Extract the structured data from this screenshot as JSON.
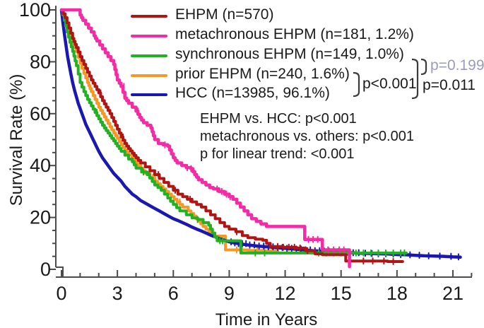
{
  "figure": {
    "background": "#ffffff",
    "text_color": "#1a1a1a",
    "axis_color": "#4b4b4b"
  },
  "chart_data": {
    "type": "line",
    "variant": "kaplan-meier-survival-steps",
    "title": "",
    "xlabel": "Time in Years",
    "ylabel": "Survival Rate (%)",
    "xlim": [
      0,
      22
    ],
    "ylim": [
      0,
      100
    ],
    "xticks": [
      0,
      3,
      6,
      9,
      12,
      15,
      18,
      21
    ],
    "xtick_minor_interval": 1,
    "yticks": [
      0,
      20,
      40,
      60,
      80,
      100
    ],
    "ytick_minor_interval": 5,
    "grid": false,
    "legend_position": "top-left-inside",
    "annotations": [
      "EHPM vs. HCC: p<0.001",
      "metachronous vs. others: p<0.001",
      "p for linear trend: <0.001"
    ],
    "comparisons": [
      {
        "label": "p<0.001",
        "color": "#1a1a1a"
      },
      {
        "label": "p=0.011",
        "color": "#1a1a1a"
      },
      {
        "label": "p=0.199",
        "color": "#9b9bbd"
      }
    ],
    "series": [
      {
        "name": "EHPM",
        "label": "EHPM (n=570)",
        "color": "#b01513",
        "line_width": 4,
        "step": true,
        "points": [
          [
            0,
            100
          ],
          [
            0.2,
            97
          ],
          [
            0.4,
            93
          ],
          [
            0.6,
            89
          ],
          [
            0.8,
            85.5
          ],
          [
            1,
            82
          ],
          [
            1.2,
            79
          ],
          [
            1.4,
            76
          ],
          [
            1.6,
            73
          ],
          [
            1.8,
            70.5
          ],
          [
            2,
            68
          ],
          [
            2.2,
            65
          ],
          [
            2.4,
            62.5
          ],
          [
            2.6,
            60
          ],
          [
            2.8,
            57
          ],
          [
            3,
            54
          ],
          [
            3.2,
            51
          ],
          [
            3.4,
            48.5
          ],
          [
            3.6,
            46.5
          ],
          [
            3.8,
            44.8
          ],
          [
            4,
            43
          ],
          [
            4.25,
            41
          ],
          [
            4.5,
            39.5
          ],
          [
            4.75,
            38
          ],
          [
            5,
            36.5
          ],
          [
            5.25,
            35
          ],
          [
            5.5,
            33.5
          ],
          [
            5.75,
            32
          ],
          [
            6,
            30.5
          ],
          [
            6.25,
            29
          ],
          [
            6.5,
            28
          ],
          [
            6.75,
            27
          ],
          [
            7,
            26
          ],
          [
            7.25,
            25
          ],
          [
            7.5,
            24
          ],
          [
            7.75,
            22.5
          ],
          [
            8,
            21
          ],
          [
            8.25,
            19.5
          ],
          [
            8.5,
            18
          ],
          [
            8.75,
            16.5
          ],
          [
            9,
            15.5
          ],
          [
            9.35,
            14.5
          ],
          [
            9.7,
            13
          ],
          [
            10,
            12.2
          ],
          [
            10.4,
            11.6
          ],
          [
            10.8,
            11.2
          ],
          [
            11.2,
            8.8
          ],
          [
            11.9,
            8.5
          ],
          [
            12.6,
            8.2
          ],
          [
            13.1,
            7.2
          ],
          [
            13.6,
            6
          ],
          [
            14,
            5.6
          ],
          [
            15.2,
            5.6
          ],
          [
            15.25,
            3.2
          ],
          [
            16.5,
            3.2
          ],
          [
            17.5,
            3
          ],
          [
            18.3,
            3
          ]
        ],
        "censor_ticks": [
          2.1,
          3.3,
          5.2,
          6.1,
          6.9,
          9.4,
          11.6,
          11.9,
          12.2,
          12.5,
          12.8,
          13.2,
          16.2,
          16.7,
          17.3,
          17.8
        ]
      },
      {
        "name": "metachronous EHPM",
        "label": "metachronous EHPM (n=181, 1.2%)",
        "color": "#f42ba5",
        "line_width": 4.5,
        "step": true,
        "points": [
          [
            0,
            100
          ],
          [
            0.9,
            100
          ],
          [
            1,
            98
          ],
          [
            1.15,
            96
          ],
          [
            1.3,
            94.5
          ],
          [
            1.45,
            93
          ],
          [
            1.6,
            91.5
          ],
          [
            1.75,
            90
          ],
          [
            1.9,
            88
          ],
          [
            2.05,
            86.5
          ],
          [
            2.2,
            85
          ],
          [
            2.35,
            83.5
          ],
          [
            2.5,
            82
          ],
          [
            2.65,
            80.5
          ],
          [
            2.8,
            79
          ],
          [
            3,
            73
          ],
          [
            3.2,
            70.5
          ],
          [
            3.4,
            66
          ],
          [
            3.6,
            64
          ],
          [
            3.8,
            62.5
          ],
          [
            4,
            61
          ],
          [
            4.2,
            58.5
          ],
          [
            4.4,
            56.5
          ],
          [
            4.6,
            55.5
          ],
          [
            4.8,
            54.5
          ],
          [
            5,
            50
          ],
          [
            5.2,
            48.5
          ],
          [
            5.45,
            48
          ],
          [
            5.7,
            47.5
          ],
          [
            6,
            43
          ],
          [
            6.2,
            41
          ],
          [
            6.45,
            40
          ],
          [
            6.7,
            39.2
          ],
          [
            6.95,
            38.8
          ],
          [
            7.15,
            36.5
          ],
          [
            7.35,
            34.5
          ],
          [
            7.55,
            33.5
          ],
          [
            7.75,
            32.5
          ],
          [
            7.95,
            31.5
          ],
          [
            8.15,
            31
          ],
          [
            8.45,
            30
          ],
          [
            8.75,
            29
          ],
          [
            9,
            28
          ],
          [
            9.2,
            27
          ],
          [
            9.4,
            25.5
          ],
          [
            9.6,
            24
          ],
          [
            9.8,
            22.5
          ],
          [
            10,
            21
          ],
          [
            10.2,
            19.5
          ],
          [
            10.45,
            18.5
          ],
          [
            10.7,
            17.5
          ],
          [
            11,
            16.5
          ],
          [
            13,
            16.5
          ],
          [
            13.05,
            11.5
          ],
          [
            13.95,
            11.5
          ],
          [
            14,
            7.5
          ],
          [
            15.4,
            7.5
          ],
          [
            15.45,
            1
          ]
        ],
        "censor_ticks": [
          3.35,
          4.1,
          5.55,
          6.75,
          6.95,
          8.35,
          8.6,
          8.85,
          9.05,
          13.25,
          13.5,
          13.75,
          14.3,
          14.6,
          14.9,
          15.15
        ]
      },
      {
        "name": "synchronous EHPM",
        "label": "synchronous EHPM (n=149, 1.0%)",
        "color": "#23b123",
        "line_width": 4,
        "step": true,
        "points": [
          [
            0,
            100
          ],
          [
            0.15,
            96
          ],
          [
            0.3,
            91.5
          ],
          [
            0.45,
            87.5
          ],
          [
            0.6,
            84
          ],
          [
            0.8,
            78.5
          ],
          [
            1,
            72
          ],
          [
            1.2,
            68.5
          ],
          [
            1.4,
            65.5
          ],
          [
            1.6,
            63
          ],
          [
            1.8,
            60.5
          ],
          [
            2,
            58
          ],
          [
            2.2,
            55.5
          ],
          [
            2.4,
            53.5
          ],
          [
            2.6,
            51.5
          ],
          [
            2.8,
            49.5
          ],
          [
            3,
            47.5
          ],
          [
            3.2,
            45.5
          ],
          [
            3.4,
            44
          ],
          [
            3.6,
            42.5
          ],
          [
            3.8,
            41.5
          ],
          [
            4,
            39
          ],
          [
            4.3,
            37.5
          ],
          [
            4.6,
            36.5
          ],
          [
            5,
            32.5
          ],
          [
            5.35,
            30.5
          ],
          [
            5.7,
            27.5
          ],
          [
            6,
            25
          ],
          [
            6.35,
            22.5
          ],
          [
            6.7,
            21
          ],
          [
            7,
            19.8
          ],
          [
            7.3,
            19.2
          ],
          [
            7.6,
            18
          ],
          [
            7.9,
            17
          ],
          [
            8.1,
            14
          ],
          [
            8.35,
            11
          ],
          [
            9.55,
            11
          ],
          [
            9.62,
            6.3
          ],
          [
            12,
            6.3
          ],
          [
            15,
            6.3
          ],
          [
            18.5,
            6.3
          ]
        ],
        "censor_ticks": [
          1.9,
          4.4,
          4.7,
          7.3,
          8.5,
          8.65,
          10.4,
          10.9,
          13.8,
          14.2,
          14.6,
          15.0,
          15.4,
          15.8,
          16.2,
          16.6,
          17.0,
          17.4,
          17.8,
          18.2,
          18.4
        ]
      },
      {
        "name": "prior EHPM",
        "label": "prior EHPM (n=240, 1.6%)",
        "color": "#f79826",
        "line_width": 4,
        "step": true,
        "points": [
          [
            0,
            100
          ],
          [
            0.2,
            96
          ],
          [
            0.4,
            92
          ],
          [
            0.6,
            88
          ],
          [
            0.8,
            84
          ],
          [
            1,
            79.5
          ],
          [
            1.2,
            75.5
          ],
          [
            1.4,
            72
          ],
          [
            1.6,
            68.5
          ],
          [
            1.8,
            65.5
          ],
          [
            2,
            62.5
          ],
          [
            2.2,
            60
          ],
          [
            2.4,
            57.5
          ],
          [
            2.6,
            55
          ],
          [
            2.8,
            52.5
          ],
          [
            3,
            50.5
          ],
          [
            3.2,
            48
          ],
          [
            3.4,
            46
          ],
          [
            3.6,
            44
          ],
          [
            3.8,
            42.5
          ],
          [
            4,
            41
          ],
          [
            4.25,
            39
          ],
          [
            4.5,
            37
          ],
          [
            4.75,
            35.5
          ],
          [
            5,
            34
          ],
          [
            5.3,
            32
          ],
          [
            5.6,
            30
          ],
          [
            5.9,
            28
          ],
          [
            6.2,
            26
          ],
          [
            6.5,
            24
          ],
          [
            6.8,
            22.5
          ],
          [
            7.1,
            20.5
          ],
          [
            7.35,
            18.5
          ],
          [
            7.6,
            16.5
          ],
          [
            7.9,
            14.5
          ],
          [
            8.1,
            12.8
          ],
          [
            8.75,
            12.8
          ],
          [
            8.8,
            7.5
          ],
          [
            10,
            7.3
          ],
          [
            10.8,
            7.1
          ],
          [
            11.6,
            7
          ]
        ],
        "censor_ticks": [
          3.9,
          4.9,
          6.35,
          9.4,
          9.7,
          10.1,
          10.5,
          10.9,
          11.3
        ]
      },
      {
        "name": "HCC",
        "label": "HCC (n=13985, 96.1%)",
        "color": "#1a18b0",
        "line_width": 4.5,
        "step": false,
        "points": [
          [
            0,
            100
          ],
          [
            0.08,
            95
          ],
          [
            0.17,
            90
          ],
          [
            0.25,
            86
          ],
          [
            0.33,
            82
          ],
          [
            0.42,
            78.5
          ],
          [
            0.5,
            75.5
          ],
          [
            0.6,
            72
          ],
          [
            0.7,
            69
          ],
          [
            0.8,
            66.5
          ],
          [
            0.9,
            64
          ],
          [
            1,
            62
          ],
          [
            1.1,
            60
          ],
          [
            1.2,
            58
          ],
          [
            1.3,
            56
          ],
          [
            1.4,
            54.5
          ],
          [
            1.5,
            53
          ],
          [
            1.6,
            51.5
          ],
          [
            1.7,
            50
          ],
          [
            1.8,
            48.5
          ],
          [
            1.9,
            47
          ],
          [
            2,
            45.5
          ],
          [
            2.2,
            43
          ],
          [
            2.4,
            41
          ],
          [
            2.6,
            39
          ],
          [
            2.8,
            37
          ],
          [
            3,
            35.5
          ],
          [
            3.2,
            34
          ],
          [
            3.4,
            32
          ],
          [
            3.6,
            30.5
          ],
          [
            3.8,
            29
          ],
          [
            4,
            28
          ],
          [
            4.25,
            26.5
          ],
          [
            4.5,
            25.5
          ],
          [
            4.75,
            24.5
          ],
          [
            5,
            23.5
          ],
          [
            5.25,
            22.5
          ],
          [
            5.5,
            21.5
          ],
          [
            5.75,
            20.5
          ],
          [
            6,
            19.5
          ],
          [
            6.25,
            18.8
          ],
          [
            6.5,
            18
          ],
          [
            6.75,
            17.2
          ],
          [
            7,
            16.3
          ],
          [
            7.25,
            15.5
          ],
          [
            7.5,
            14.8
          ],
          [
            7.75,
            14
          ],
          [
            8,
            13.2
          ],
          [
            8.25,
            12.5
          ],
          [
            8.5,
            11.8
          ],
          [
            8.75,
            11.2
          ],
          [
            9,
            10.6
          ],
          [
            9.25,
            10.2
          ],
          [
            9.5,
            9.9
          ],
          [
            10,
            9.4
          ],
          [
            10.5,
            9
          ],
          [
            11,
            8.7
          ],
          [
            11.5,
            8.4
          ],
          [
            12,
            8.1
          ],
          [
            12.5,
            7.8
          ],
          [
            13,
            7.5
          ],
          [
            13.5,
            7.2
          ],
          [
            14,
            7
          ],
          [
            14.5,
            6.8
          ],
          [
            15,
            6.6
          ],
          [
            15.5,
            6.4
          ],
          [
            16,
            6.2
          ],
          [
            16.5,
            6.1
          ],
          [
            17,
            6
          ],
          [
            17.5,
            5.9
          ],
          [
            18,
            5.7
          ],
          [
            18.5,
            5.6
          ],
          [
            19,
            5.4
          ],
          [
            19.5,
            5.2
          ],
          [
            20,
            5.1
          ],
          [
            20.5,
            5
          ],
          [
            21,
            4.8
          ],
          [
            21.4,
            4.7
          ]
        ],
        "censor_ticks": [
          9.1,
          9.3,
          9.5,
          9.7,
          9.9,
          10.1,
          10.35,
          10.6,
          10.85,
          11.1,
          11.35,
          11.6,
          11.85,
          12.1,
          12.35,
          12.6,
          12.85,
          13.1,
          13.35,
          13.6,
          13.85,
          14.1,
          14.35,
          14.6,
          14.85,
          15.1,
          15.35,
          15.65,
          15.95,
          16.3,
          16.65,
          17.0,
          17.4,
          17.8,
          18.2,
          18.7,
          19.2,
          19.7,
          20.3,
          20.9,
          21.3
        ]
      }
    ]
  }
}
